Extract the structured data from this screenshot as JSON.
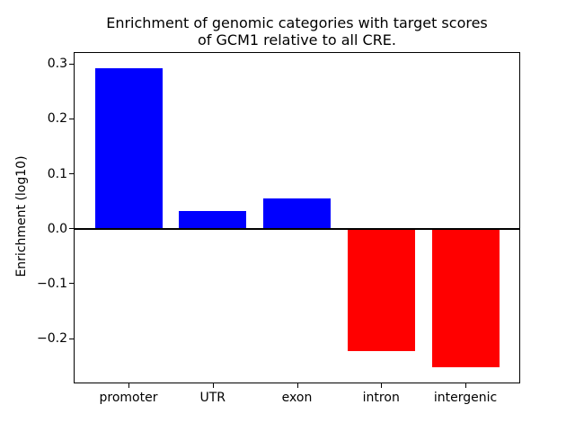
{
  "figure": {
    "background": "#ffffff",
    "text_color": "#000000"
  },
  "chart_data": {
    "type": "bar",
    "title": "Enrichment of genomic categories with target scores\nof GCM1 relative to all CRE.",
    "xlabel": "",
    "ylabel": "Enrichment (log10)",
    "categories": [
      "promoter",
      "UTR",
      "exon",
      "intron",
      "intergenic"
    ],
    "values": [
      0.293,
      0.033,
      0.055,
      -0.223,
      -0.253
    ],
    "bar_colors": [
      "#0000ff",
      "#0000ff",
      "#0000ff",
      "#ff0000",
      "#ff0000"
    ],
    "positive_color": "#0000ff",
    "negative_color": "#ff0000",
    "bar_width": 0.8,
    "xlim": [
      -0.64,
      4.64
    ],
    "ylim": [
      -0.28,
      0.32
    ],
    "yticks": [
      {
        "value": 0.3,
        "label": "0.3"
      },
      {
        "value": 0.2,
        "label": "0.2"
      },
      {
        "value": 0.1,
        "label": "0.1"
      },
      {
        "value": 0.0,
        "label": "0.0"
      },
      {
        "value": -0.1,
        "label": "−0.1"
      },
      {
        "value": -0.2,
        "label": "−0.2"
      }
    ],
    "zero_line": {
      "value": 0.0,
      "color": "#000000",
      "thickness_px": 2
    },
    "grid": false,
    "legend": null
  }
}
